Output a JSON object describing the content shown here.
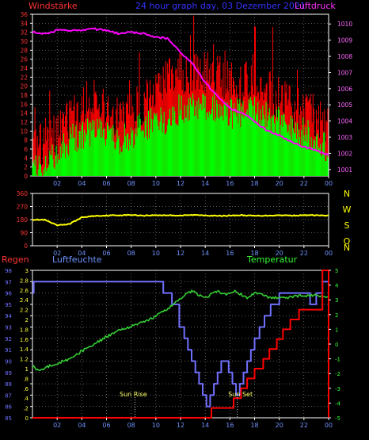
{
  "header": {
    "left": "Windstärke",
    "center": "24 hour graph day, 03 Dezember 2021",
    "right": "Luftdruck"
  },
  "panel2": {
    "compass": [
      "N",
      "W",
      "S",
      "O",
      "N"
    ]
  },
  "panel3": {
    "left1": "Regen",
    "left2": "Luftfeuchte",
    "right": "Temperatur",
    "sunrise": "Sun Rise",
    "sunset": "Sun Set"
  },
  "colors": {
    "background": "#000000",
    "wind_max": "#ff0000",
    "wind_avg": "#00ff00",
    "pressure": "#ff00ff",
    "direction": "#ffff00",
    "humidity": "#7070ff",
    "temperature": "#33cc33",
    "rain": "#ff0000",
    "axis_left": "#ff3333",
    "axis_right_pressure": "#ff66ff",
    "compass": "#ffff00",
    "ticks": "#6f93ff"
  },
  "chart_data": [
    {
      "type": "area",
      "ylabel": "Windstärke",
      "y2label": "Luftdruck",
      "ylim": [
        0,
        36
      ],
      "y2lim": [
        1000.6,
        1010.6
      ],
      "yticks": [
        0,
        2,
        4,
        6,
        8,
        10,
        12,
        14,
        16,
        18,
        20,
        22,
        24,
        26,
        28,
        30,
        32,
        34,
        36
      ],
      "y2ticks": [
        1001,
        1002,
        1003,
        1004,
        1005,
        1006,
        1007,
        1008,
        1009,
        1010
      ],
      "xticks": [
        "02",
        "04",
        "06",
        "08",
        "10",
        "12",
        "14",
        "16",
        "18",
        "20",
        "22",
        "00"
      ],
      "x": [
        0,
        1,
        2,
        3,
        4,
        5,
        6,
        7,
        8,
        9,
        10,
        11,
        12,
        13,
        14,
        15,
        16,
        17,
        18,
        19,
        20,
        21,
        22,
        23,
        24
      ],
      "series": [
        {
          "values": [
            5,
            5,
            8,
            12,
            14,
            14,
            13,
            12,
            13,
            15,
            17,
            20,
            21,
            22,
            22,
            21,
            19,
            19,
            21,
            17,
            16,
            14,
            13,
            12,
            9
          ]
        },
        {
          "values": [
            2,
            2,
            5,
            8,
            9,
            10,
            9,
            8,
            9,
            11,
            12,
            13,
            15,
            16,
            16,
            15,
            14,
            14,
            15,
            13,
            12,
            11,
            10,
            8,
            6
          ]
        },
        {
          "values": [
            1009.5,
            1009.4,
            1009.6,
            1009.6,
            1009.6,
            1009.7,
            1009.6,
            1009.4,
            1009.5,
            1009.4,
            1009.2,
            1009.1,
            1008.2,
            1007.5,
            1006.4,
            1005.5,
            1004.8,
            1004.5,
            1004.0,
            1003.4,
            1003.1,
            1002.7,
            1002.4,
            1002.2,
            1001.9
          ]
        }
      ]
    },
    {
      "type": "line",
      "ylim": [
        0,
        360
      ],
      "yticks": [
        0,
        90,
        180,
        270,
        360
      ],
      "xticks": [
        "02",
        "04",
        "06",
        "08",
        "10",
        "12",
        "14",
        "16",
        "18",
        "20",
        "22",
        "00"
      ],
      "x": [
        0,
        1,
        2,
        3,
        4,
        5,
        6,
        7,
        8,
        9,
        10,
        11,
        12,
        13,
        14,
        15,
        16,
        17,
        18,
        19,
        20,
        21,
        22,
        23,
        24
      ],
      "series": [
        {
          "values": [
            180,
            178,
            140,
            150,
            195,
            205,
            208,
            210,
            212,
            208,
            210,
            210,
            208,
            212,
            210,
            205,
            208,
            210,
            206,
            208,
            210,
            208,
            210,
            210,
            206
          ]
        }
      ]
    },
    {
      "type": "line",
      "ylabel": "Luftfeuchte",
      "y2label": "Temperatur",
      "ylim": [
        85,
        98
      ],
      "y2lim": [
        -5,
        5
      ],
      "rainlim": [
        0,
        3
      ],
      "yticks": [
        85,
        86,
        87,
        88,
        89,
        90,
        91,
        92,
        93,
        94,
        95,
        96,
        97,
        98
      ],
      "y2ticks": [
        -5,
        -4,
        -3,
        -2,
        -1,
        0,
        1,
        2,
        3,
        4,
        5
      ],
      "rainticks": [
        0,
        0.2,
        0.4,
        0.6,
        0.8,
        1,
        1.2,
        1.4,
        1.6,
        1.8,
        2,
        2.2,
        2.4,
        2.6,
        2.8,
        3
      ],
      "xticks": [
        "02",
        "04",
        "06",
        "08",
        "10",
        "12",
        "14",
        "16",
        "18",
        "20",
        "22",
        "00"
      ],
      "series": [
        {
          "x": [
            0,
            0.1,
            1,
            6,
            10.2,
            10.6,
            11.3,
            11.9,
            12.3,
            12.6,
            12.9,
            13.2,
            13.5,
            13.8,
            14.1,
            14.4,
            14.7,
            15.0,
            15.3,
            15.6,
            15.9,
            16.2,
            16.5,
            16.8,
            17.1,
            17.4,
            17.7,
            18.0,
            18.4,
            18.8,
            19.3,
            20,
            21,
            22,
            22.5,
            23,
            23.5,
            24
          ],
          "values": [
            96,
            97,
            97,
            97,
            97,
            96,
            95,
            93,
            92,
            91,
            90,
            89,
            88,
            87,
            86,
            87,
            88,
            89,
            90,
            90,
            89,
            88,
            87,
            88,
            89,
            90,
            91,
            92,
            93,
            94,
            95,
            96,
            96,
            96,
            95,
            96,
            97,
            97
          ]
        },
        {
          "x": [
            0,
            0.5,
            1,
            2,
            3,
            4,
            5,
            6,
            7,
            8,
            9,
            10,
            11,
            11.5,
            12,
            12.5,
            13,
            13.5,
            14,
            14.5,
            15,
            15.5,
            16,
            16.5,
            17,
            17.5,
            18,
            19,
            20,
            21,
            22,
            23,
            24
          ],
          "values": [
            -1.5,
            -1.8,
            -1.6,
            -1.3,
            -1,
            -0.5,
            0,
            0.5,
            0.9,
            1.2,
            1.5,
            1.9,
            2.4,
            2.8,
            3.1,
            3.4,
            3.6,
            3.3,
            3.1,
            3.4,
            3.6,
            3.4,
            3.4,
            3.6,
            3.3,
            3.1,
            3.5,
            3.2,
            3.1,
            3.2,
            3.3,
            3.3,
            3.2
          ]
        },
        {
          "x": [
            0,
            14.5,
            14.5,
            16.3,
            16.3,
            16.9,
            17.4,
            18,
            18.7,
            19.2,
            19.8,
            20.3,
            20.9,
            21.6,
            23.5,
            23.5,
            24
          ],
          "values": [
            0,
            0,
            0.2,
            0.2,
            0.4,
            0.6,
            0.8,
            1.0,
            1.2,
            1.4,
            1.6,
            1.8,
            2.0,
            2.2,
            2.8,
            3.0,
            3.0
          ]
        }
      ],
      "markers": [
        {
          "x": 8.3,
          "label": "Sun Rise"
        },
        {
          "x": 16.6,
          "label": "Sun Set"
        }
      ]
    }
  ]
}
